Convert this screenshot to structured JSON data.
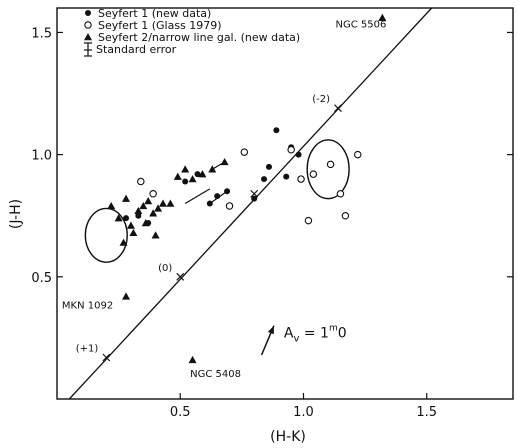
{
  "chart_data": {
    "type": "scatter",
    "title": "",
    "xlabel": "(H-K)",
    "ylabel": "(J-H)",
    "xlim": [
      0.0,
      1.85
    ],
    "ylim": [
      0.0,
      1.6
    ],
    "x_ticks": [
      "0.5",
      "1.0",
      "1.5"
    ],
    "x_tick_values": [
      0.5,
      1.0,
      1.5
    ],
    "y_ticks": [
      "0.5",
      "1.0",
      "1.5"
    ],
    "y_tick_values": [
      0.5,
      1.0,
      1.5
    ],
    "grid": false,
    "legend_position": "top-left",
    "legend": [
      {
        "marker": "filled-circle",
        "label": "Seyfert 1 (new data)"
      },
      {
        "marker": "open-circle",
        "label": "Seyfert 1 (Glass 1979)"
      },
      {
        "marker": "filled-triangle",
        "label": "Seyfert 2/narrow line gal. (new data)"
      }
    ],
    "error_bar_legend": "Standard error",
    "series": [
      {
        "name": "Seyfert 1 (new data)",
        "marker": "filled-circle",
        "points": [
          [
            0.28,
            0.74
          ],
          [
            0.33,
            0.75
          ],
          [
            0.37,
            0.72
          ],
          [
            0.52,
            0.89
          ],
          [
            0.62,
            0.8
          ],
          [
            0.69,
            0.85
          ],
          [
            0.57,
            0.92
          ],
          [
            0.65,
            0.83
          ],
          [
            0.8,
            0.82
          ],
          [
            0.84,
            0.9
          ],
          [
            0.86,
            0.95
          ],
          [
            0.89,
            1.1
          ],
          [
            0.93,
            0.91
          ],
          [
            0.95,
            1.03
          ],
          [
            0.98,
            1.0
          ]
        ]
      },
      {
        "name": "Seyfert 1 (Glass 1979)",
        "marker": "open-circle",
        "points": [
          [
            0.34,
            0.89
          ],
          [
            0.39,
            0.84
          ],
          [
            0.7,
            0.79
          ],
          [
            0.76,
            1.01
          ],
          [
            0.95,
            1.02
          ],
          [
            0.99,
            0.9
          ],
          [
            1.02,
            0.73
          ],
          [
            1.04,
            0.92
          ],
          [
            1.11,
            0.96
          ],
          [
            1.17,
            0.75
          ],
          [
            1.15,
            0.84
          ],
          [
            1.22,
            1.0
          ]
        ]
      },
      {
        "name": "Seyfert 2/narrow line gal. (new data)",
        "marker": "filled-triangle",
        "points": [
          [
            0.22,
            0.79
          ],
          [
            0.25,
            0.74
          ],
          [
            0.27,
            0.64
          ],
          [
            0.28,
            0.82
          ],
          [
            0.3,
            0.71
          ],
          [
            0.31,
            0.68
          ],
          [
            0.33,
            0.77
          ],
          [
            0.35,
            0.79
          ],
          [
            0.36,
            0.72
          ],
          [
            0.37,
            0.81
          ],
          [
            0.39,
            0.76
          ],
          [
            0.4,
            0.67
          ],
          [
            0.41,
            0.78
          ],
          [
            0.43,
            0.8
          ],
          [
            0.46,
            0.8
          ],
          [
            0.49,
            0.91
          ],
          [
            0.52,
            0.94
          ],
          [
            0.55,
            0.9
          ],
          [
            0.59,
            0.92
          ],
          [
            0.63,
            0.94
          ],
          [
            0.68,
            0.97
          ],
          [
            0.28,
            0.42
          ],
          [
            0.55,
            0.16
          ],
          [
            1.32,
            1.56
          ]
        ]
      }
    ],
    "connected_pairs": [
      [
        [
          0.52,
          0.8
        ],
        [
          0.62,
          0.86
        ]
      ],
      [
        [
          0.62,
          0.8
        ],
        [
          0.69,
          0.85
        ]
      ],
      [
        [
          0.63,
          0.94
        ],
        [
          0.68,
          0.97
        ]
      ]
    ],
    "blackbody_line": {
      "points": [
        [
          0.05,
          0.0
        ],
        [
          1.52,
          1.6
        ]
      ],
      "tick_marks": [
        {
          "x": 0.2,
          "y": 0.17,
          "label": "(+1)"
        },
        {
          "x": 0.5,
          "y": 0.5,
          "label": "(0)"
        },
        {
          "x": 0.8,
          "y": 0.84
        },
        {
          "x": 1.14,
          "y": 1.19,
          "label": "(-2)"
        }
      ]
    },
    "ellipses": [
      {
        "cx": 0.2,
        "cy": 0.67,
        "rx": 0.085,
        "ry": 0.11
      },
      {
        "cx": 1.1,
        "cy": 0.94,
        "rx": 0.085,
        "ry": 0.12
      }
    ],
    "annotations": [
      {
        "text": "NGC 5506",
        "x": 1.13,
        "y": 1.52
      },
      {
        "text": "MKN 1092",
        "x": 0.02,
        "y": 0.37
      },
      {
        "text": "NGC 5408",
        "x": 0.54,
        "y": 0.09
      }
    ],
    "reddening_vector": {
      "from": [
        0.83,
        0.18
      ],
      "to": [
        0.88,
        0.3
      ],
      "label_prefix": "A",
      "label_sub": "v",
      "label_eq": " = 1",
      "label_sup": "m",
      "label_suffix": "0"
    }
  }
}
